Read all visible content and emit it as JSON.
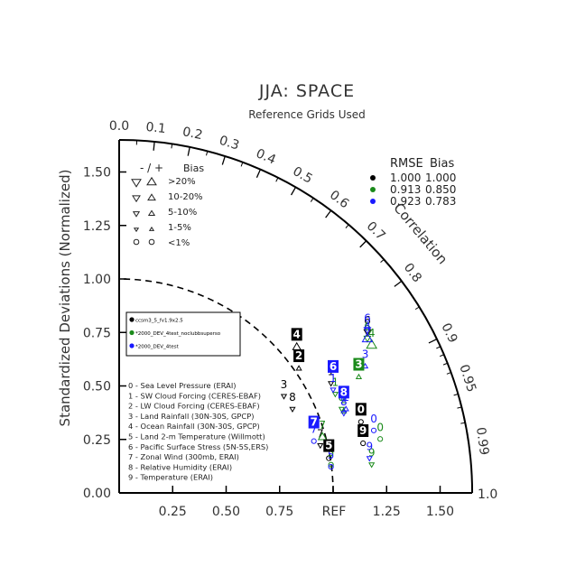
{
  "chart_data": {
    "type": "taylor_diagram",
    "title": "JJA: SPACE",
    "subtitle": "Reference Grids Used",
    "ylabel": "Standardized Deviations (Normalized)",
    "correlation_label": "Correlation",
    "ref_label": "REF",
    "radial_ticks": [
      "0.00",
      "0.25",
      "0.50",
      "0.75",
      "1.00",
      "1.25",
      "1.50"
    ],
    "x_ticks": [
      "0.25",
      "0.50",
      "0.75",
      "1.25",
      "1.50"
    ],
    "axis_max": "1.0",
    "corr_ticks": [
      {
        "r": 0.0,
        "label": "0.0"
      },
      {
        "r": 0.1,
        "label": "0.1"
      },
      {
        "r": 0.2,
        "label": "0.2"
      },
      {
        "r": 0.3,
        "label": "0.3"
      },
      {
        "r": 0.4,
        "label": "0.4"
      },
      {
        "r": 0.5,
        "label": "0.5"
      },
      {
        "r": 0.6,
        "label": "0.6"
      },
      {
        "r": 0.7,
        "label": "0.7"
      },
      {
        "r": 0.8,
        "label": "0.8"
      },
      {
        "r": 0.9,
        "label": "0.9"
      },
      {
        "r": 0.95,
        "label": "0.95"
      },
      {
        "r": 0.99,
        "label": "0.99"
      }
    ],
    "ref_std": 1.0,
    "stats_header": {
      "rmse": "RMSE",
      "bias": "Bias"
    },
    "series": [
      {
        "name": "ccsm3_5_fv1.9x2.5",
        "color": "#000000",
        "rmse": "1.000",
        "bias": "1.000"
      },
      {
        "name": "*2000_DEV_4test_noclubbsuperso",
        "color": "#1a8a1a",
        "rmse": "0.913",
        "bias": "0.850"
      },
      {
        "name": "*2000_DEV_4test",
        "color": "#1a1aff",
        "rmse": "0.923",
        "bias": "0.783"
      }
    ],
    "bias_legend": {
      "header": "- / +",
      "title": "Bias",
      "rows": [
        {
          "label": ">20%",
          "size": 5
        },
        {
          "label": "10-20%",
          "size": 4
        },
        {
          "label": "5-10%",
          "size": 3.2
        },
        {
          "label": "1-5%",
          "size": 2.2
        },
        {
          "label": "<1%",
          "size": 0
        }
      ]
    },
    "variables": [
      "0 - Sea Level Pressure (ERAI)",
      "1 - SW Cloud Forcing (CERES-EBAF)",
      "2 - LW Cloud Forcing (CERES-EBAF)",
      "3 - Land Rainfall (30N-30S, GPCP)",
      "4 - Ocean Rainfall (30N-30S, GPCP)",
      "5 - Land 2-m Temperature (Willmott)",
      "6 - Pacific Surface Stress (5N-5S,ERS)",
      "7 - Zonal Wind (300mb, ERAI)",
      "8 - Relative Humidity (ERAI)",
      "9 - Temperature (ERAI)"
    ],
    "points": [
      {
        "series": 0,
        "v": "0",
        "x": 1.13,
        "y": 0.37,
        "m": "circle",
        "s": 0
      },
      {
        "series": 0,
        "v": "1",
        "x": 0.99,
        "y": 0.55,
        "m": "dn",
        "s": 2.5
      },
      {
        "series": 0,
        "v": "2",
        "x": 0.84,
        "y": 0.62,
        "m": "up",
        "s": 2.5
      },
      {
        "series": 0,
        "v": "3",
        "x": 0.77,
        "y": 0.49,
        "m": "dn",
        "s": 2.5
      },
      {
        "series": 0,
        "v": "4",
        "x": 0.83,
        "y": 0.72,
        "m": "up",
        "s": 4
      },
      {
        "series": 0,
        "v": "5",
        "x": 0.98,
        "y": 0.2,
        "m": "circle",
        "s": 0
      },
      {
        "series": 0,
        "v": "6",
        "x": 1.16,
        "y": 0.79,
        "m": "dn",
        "s": 3.3
      },
      {
        "series": 0,
        "v": "7",
        "x": 0.94,
        "y": 0.26,
        "m": "dn",
        "s": 2.5
      },
      {
        "series": 0,
        "v": "8",
        "x": 0.81,
        "y": 0.43,
        "m": "dn",
        "s": 2.5
      },
      {
        "series": 0,
        "v": "9",
        "x": 1.14,
        "y": 0.27,
        "m": "circle",
        "s": 0
      },
      {
        "series": 1,
        "v": "0",
        "x": 1.22,
        "y": 0.29,
        "m": "circle",
        "s": 0
      },
      {
        "series": 1,
        "v": "1",
        "x": 1.01,
        "y": 0.5,
        "m": "dn",
        "s": 2.5
      },
      {
        "series": 1,
        "v": "2",
        "x": 1.05,
        "y": 0.42,
        "m": "up",
        "s": 2.5
      },
      {
        "series": 1,
        "v": "3",
        "x": 1.12,
        "y": 0.58,
        "m": "up",
        "s": 2.5
      },
      {
        "series": 1,
        "v": "4",
        "x": 1.18,
        "y": 0.73,
        "m": "up",
        "s": 5
      },
      {
        "series": 1,
        "v": "5",
        "x": 0.99,
        "y": 0.17,
        "m": "circle",
        "s": 0
      },
      {
        "series": 1,
        "v": "6",
        "x": 1.16,
        "y": 0.76,
        "m": "dn",
        "s": 3.3
      },
      {
        "series": 1,
        "v": "7",
        "x": 0.95,
        "y": 0.3,
        "m": "up",
        "s": 4
      },
      {
        "series": 1,
        "v": "8",
        "x": 1.04,
        "y": 0.43,
        "m": "dn",
        "s": 2.5
      },
      {
        "series": 1,
        "v": "9",
        "x": 1.18,
        "y": 0.17,
        "m": "dn",
        "s": 2.5
      },
      {
        "series": 2,
        "v": "0",
        "x": 1.19,
        "y": 0.33,
        "m": "circle",
        "s": 0
      },
      {
        "series": 2,
        "v": "1",
        "x": 1.0,
        "y": 0.52,
        "m": "dn",
        "s": 2.5
      },
      {
        "series": 2,
        "v": "2",
        "x": 1.06,
        "y": 0.43,
        "m": "up",
        "s": 2.5
      },
      {
        "series": 2,
        "v": "3",
        "x": 1.15,
        "y": 0.63,
        "m": "up",
        "s": 2.5
      },
      {
        "series": 2,
        "v": "4",
        "x": 1.16,
        "y": 0.76,
        "m": "up",
        "s": 5
      },
      {
        "series": 2,
        "v": "5",
        "x": 0.99,
        "y": 0.16,
        "m": "circle",
        "s": 0
      },
      {
        "series": 2,
        "v": "6",
        "x": 1.16,
        "y": 0.8,
        "m": "dn",
        "s": 3.3
      },
      {
        "series": 2,
        "v": "7",
        "x": 0.91,
        "y": 0.28,
        "m": "circle",
        "s": 0
      },
      {
        "series": 2,
        "v": "8",
        "x": 1.05,
        "y": 0.41,
        "m": "dn",
        "s": 2.5
      },
      {
        "series": 2,
        "v": "9",
        "x": 1.17,
        "y": 0.2,
        "m": "dn",
        "s": 2.5
      }
    ],
    "boxed_labels": [
      {
        "series": 0,
        "v": "0",
        "x": 1.13,
        "y": 0.37
      },
      {
        "series": 0,
        "v": "2",
        "x": 0.84,
        "y": 0.62
      },
      {
        "series": 0,
        "v": "4",
        "x": 0.83,
        "y": 0.72
      },
      {
        "series": 0,
        "v": "5",
        "x": 0.98,
        "y": 0.2
      },
      {
        "series": 0,
        "v": "9",
        "x": 1.14,
        "y": 0.27
      },
      {
        "series": 1,
        "v": "3",
        "x": 1.12,
        "y": 0.58
      },
      {
        "series": 2,
        "v": "6",
        "x": 1.0,
        "y": 0.57
      },
      {
        "series": 2,
        "v": "7",
        "x": 0.91,
        "y": 0.31
      },
      {
        "series": 2,
        "v": "8",
        "x": 1.05,
        "y": 0.45
      }
    ]
  }
}
